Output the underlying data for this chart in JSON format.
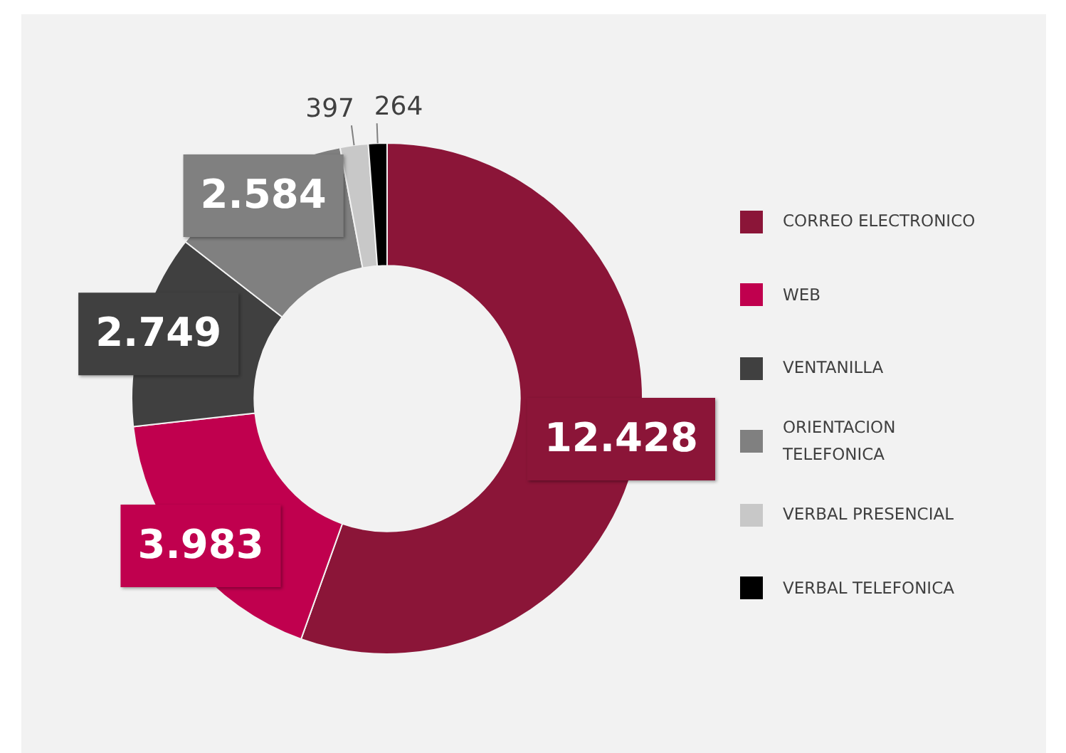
{
  "chart_data": {
    "type": "donut",
    "categories": [
      "CORREO ELECTRONICO",
      "WEB",
      "VENTANILLA",
      "ORIENTACION TELEFONICA",
      "VERBAL PRESENCIAL",
      "VERBAL TELEFONICA"
    ],
    "values": [
      12428,
      3983,
      2749,
      2584,
      397,
      264
    ],
    "value_labels": [
      "12.428",
      "3.983",
      "2.749",
      "2.584",
      "397",
      "264"
    ],
    "colors": [
      "#8b1538",
      "#c0004e",
      "#404040",
      "#808080",
      "#c8c8c8",
      "#000000"
    ],
    "legend": "right"
  }
}
